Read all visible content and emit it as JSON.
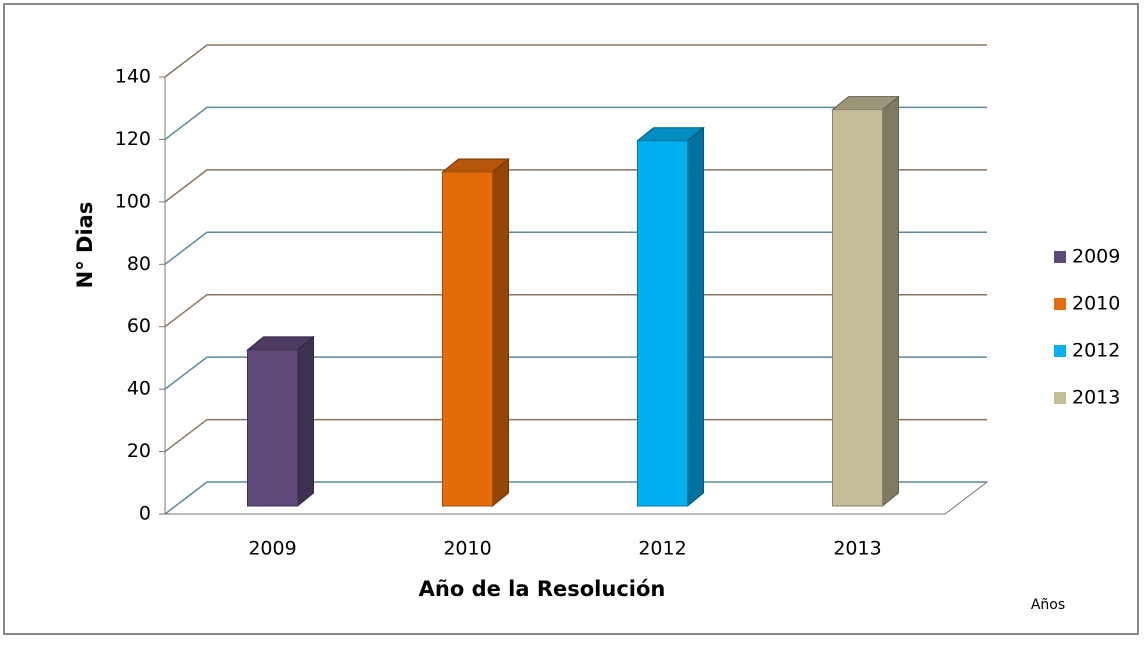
{
  "chart_data": {
    "type": "bar3d",
    "y_label": "N° Dias",
    "x_label": "Año de la Resolución",
    "note": "Años",
    "categories": [
      "2009",
      "2010",
      "2012",
      "2013"
    ],
    "values": [
      50,
      107,
      117,
      127
    ],
    "colors": [
      "#604a7b",
      "#e46c0a",
      "#00b0f0",
      "#c4bd97"
    ],
    "ylim": [
      0,
      140
    ],
    "yticks": [
      0,
      20,
      40,
      60,
      80,
      100,
      120,
      140
    ],
    "grid": true,
    "legend": "right"
  }
}
